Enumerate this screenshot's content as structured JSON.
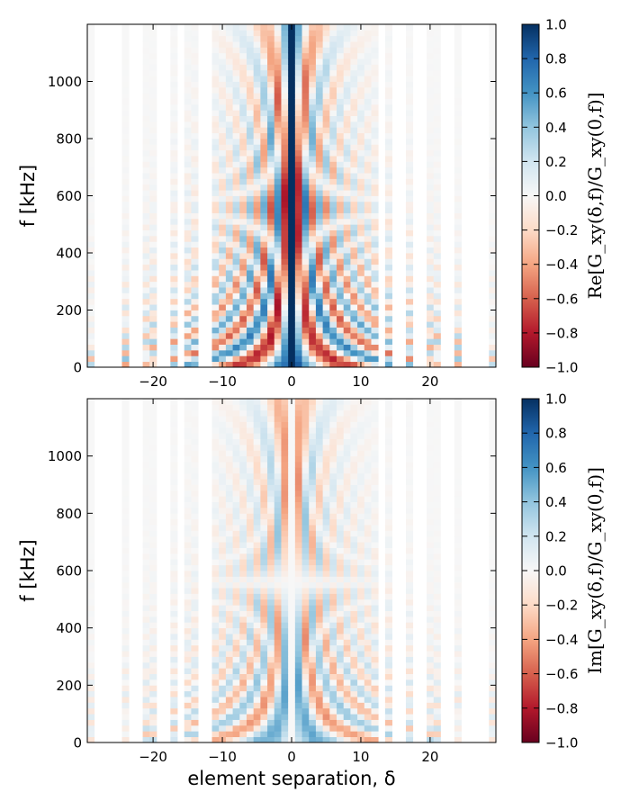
{
  "chart_data": [
    {
      "type": "heatmap",
      "panel": "top",
      "component": "real",
      "xlabel": "",
      "ylabel": "f [kHz]",
      "xlim": [
        -29.5,
        29.5
      ],
      "ylim": [
        0,
        1200
      ],
      "x_ticks": [
        -20,
        -10,
        0,
        10,
        20
      ],
      "x_tick_labels": [
        "−20",
        "−10",
        "0",
        "10",
        "20"
      ],
      "y_ticks": [
        0,
        200,
        400,
        600,
        800,
        1000
      ],
      "y_tick_labels": [
        "0",
        "200",
        "400",
        "600",
        "800",
        "1000"
      ],
      "missing_columns": [
        -28,
        -27,
        -26,
        -25,
        -23,
        -22,
        -19,
        -18,
        -16,
        -13,
        -12,
        13,
        15,
        16,
        18,
        19,
        22,
        23,
        25,
        26,
        27,
        28
      ],
      "colorbar": {
        "label": "Re[G_xy(δ,f)/G_xy(0,f)]",
        "range": [
          -1,
          1
        ],
        "ticks": [
          1.0,
          0.8,
          0.6,
          0.4,
          0.2,
          0.0,
          -0.2,
          -0.4,
          -0.6,
          -0.8,
          -1.0
        ],
        "tick_labels": [
          "1.0",
          "0.8",
          "0.6",
          "0.4",
          "0.2",
          "0.0",
          "−0.2",
          "−0.4",
          "−0.6",
          "−0.8",
          "−1.0"
        ],
        "colormap": "RdBu"
      }
    },
    {
      "type": "heatmap",
      "panel": "bottom",
      "component": "imaginary",
      "xlabel": "element separation, δ",
      "ylabel": "f [kHz]",
      "xlim": [
        -29.5,
        29.5
      ],
      "ylim": [
        0,
        1200
      ],
      "x_ticks": [
        -20,
        -10,
        0,
        10,
        20
      ],
      "x_tick_labels": [
        "−20",
        "−10",
        "0",
        "10",
        "20"
      ],
      "y_ticks": [
        0,
        200,
        400,
        600,
        800,
        1000
      ],
      "y_tick_labels": [
        "0",
        "200",
        "400",
        "600",
        "800",
        "1000"
      ],
      "missing_columns": [
        -28,
        -27,
        -26,
        -25,
        -23,
        -22,
        -19,
        -18,
        -16,
        -13,
        -12,
        13,
        15,
        16,
        18,
        19,
        22,
        23,
        25,
        26,
        27,
        28
      ],
      "colorbar": {
        "label": "Im[G_xy(δ,f)/G_xy(0,f)]",
        "range": [
          -1,
          1
        ],
        "ticks": [
          1.0,
          0.8,
          0.6,
          0.4,
          0.2,
          0.0,
          -0.2,
          -0.4,
          -0.6,
          -0.8,
          -1.0
        ],
        "tick_labels": [
          "1.0",
          "0.8",
          "0.6",
          "0.4",
          "0.2",
          "0.0",
          "−0.2",
          "−0.4",
          "−0.6",
          "−0.8",
          "−1.0"
        ],
        "colormap": "RdBu"
      }
    }
  ],
  "colors": {
    "colormap_stops": [
      "#67001f",
      "#b2182b",
      "#d6604d",
      "#f4a582",
      "#fddbc7",
      "#f7f7f7",
      "#d1e5f0",
      "#92c5de",
      "#4393c3",
      "#2166ac",
      "#053061"
    ],
    "axes": "#000000",
    "missing_column": "#ffffff"
  }
}
